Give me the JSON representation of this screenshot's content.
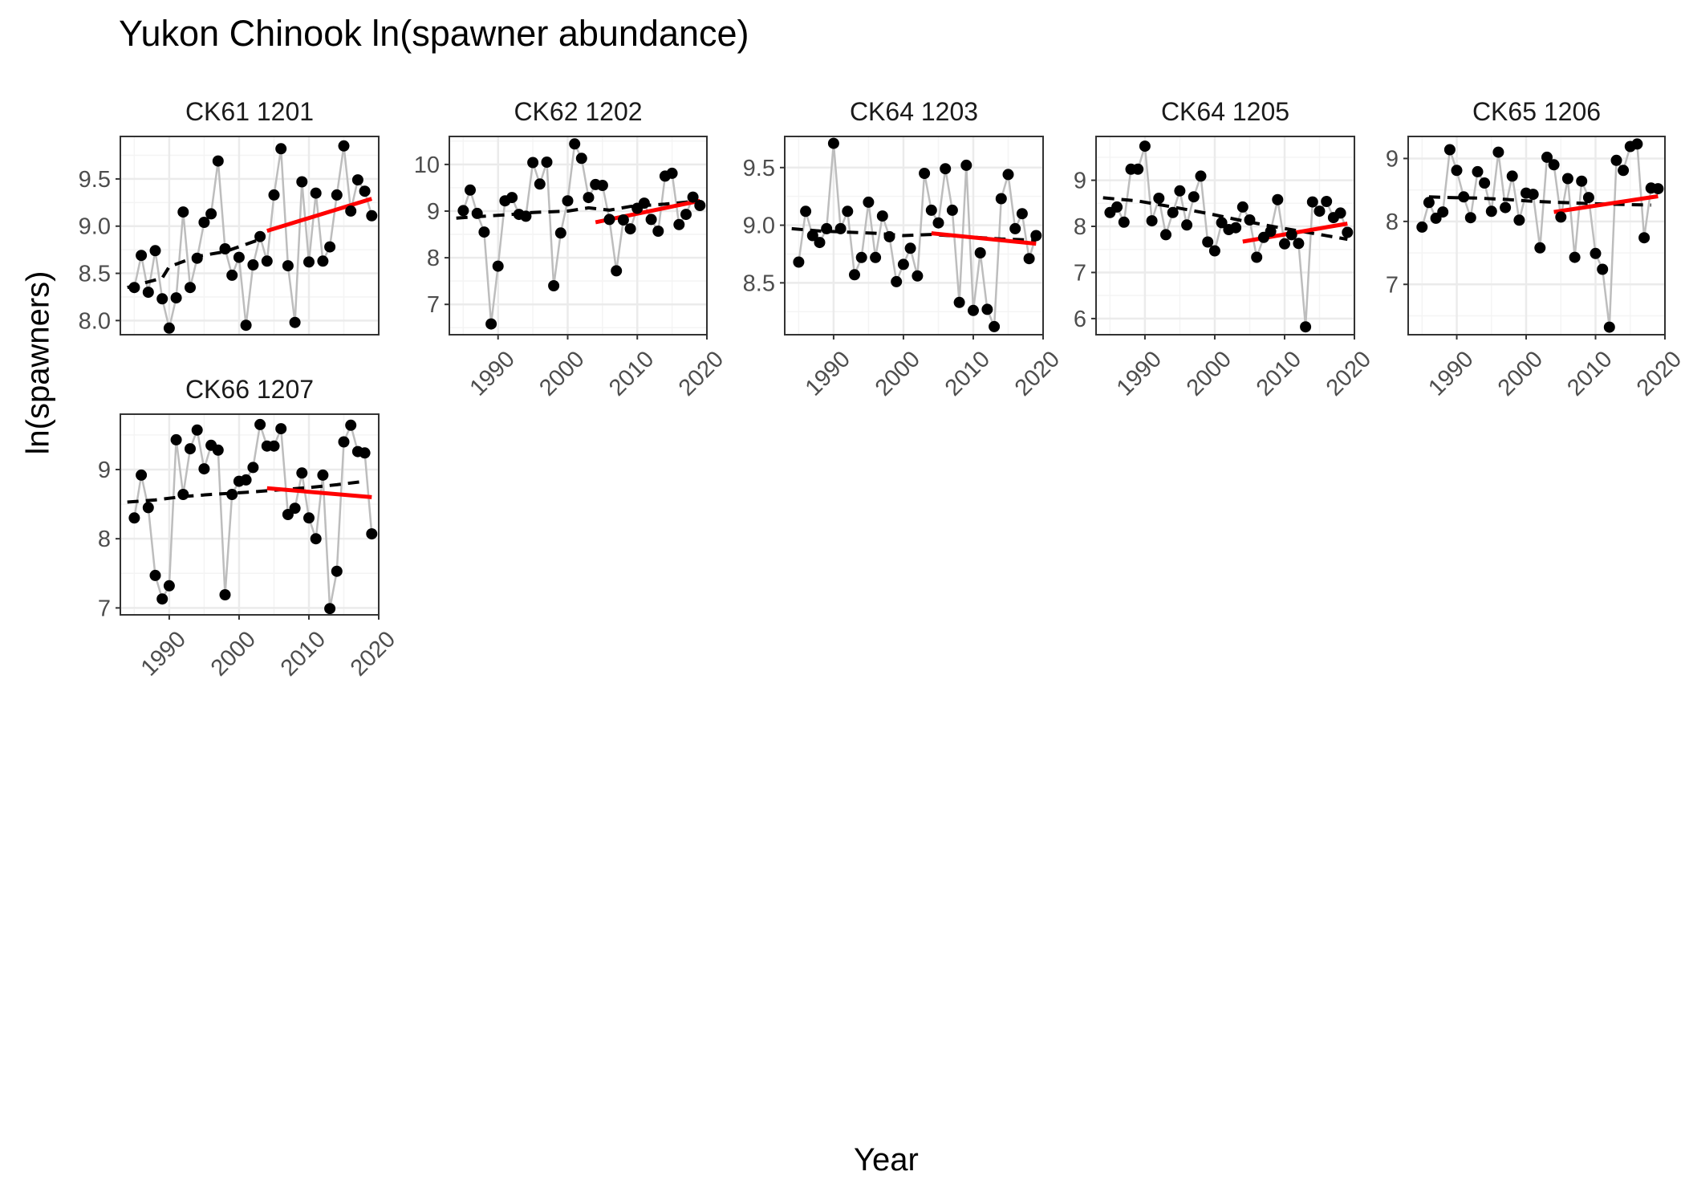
{
  "title": "Yukon Chinook  ln(spawner abundance)",
  "xlabel": "Year",
  "ylabel": "ln(spawners)",
  "colors": {
    "points": "#000000",
    "connector": "#bdbdbd",
    "trend_dashed": "#000000",
    "trend_recent": "#ff0000",
    "panel_border": "#333333",
    "grid_major": "#ebebeb",
    "grid_minor": "#f4f4f4",
    "strip_text": "#1a1a1a",
    "tick_text": "#4d4d4d"
  },
  "chart_data": [
    {
      "type": "scatter",
      "panel": "CK61 1201",
      "xlim": [
        1983,
        2020
      ],
      "ylim": [
        7.85,
        9.95
      ],
      "xticks": [
        1990,
        2000,
        2010,
        2020
      ],
      "yticks": [
        8.0,
        8.5,
        9.0,
        9.5
      ],
      "ytick_labels": [
        "8.0",
        "8.5",
        "9.0",
        "9.5"
      ],
      "show_x_axis": false,
      "years": [
        1985,
        1986,
        1987,
        1988,
        1989,
        1990,
        1991,
        1992,
        1993,
        1994,
        1995,
        1996,
        1997,
        1998,
        1999,
        2000,
        2001,
        2002,
        2003,
        2004,
        2005,
        2006,
        2007,
        2008,
        2009,
        2010,
        2011,
        2012,
        2013,
        2014,
        2015,
        2016,
        2017,
        2018,
        2019
      ],
      "values": [
        8.35,
        8.69,
        8.3,
        8.74,
        8.23,
        7.92,
        8.24,
        9.15,
        8.35,
        8.66,
        9.04,
        9.13,
        9.69,
        8.76,
        8.48,
        8.67,
        7.95,
        8.59,
        8.89,
        8.63,
        9.33,
        9.82,
        8.58,
        7.98,
        9.47,
        8.62,
        9.35,
        8.63,
        8.78,
        9.33,
        9.85,
        9.16,
        9.49,
        9.37,
        9.11
      ],
      "trend_dashed": [
        [
          1984,
          8.35
        ],
        [
          1989,
          8.45
        ],
        [
          1990,
          8.57
        ],
        [
          1994,
          8.68
        ],
        [
          1998,
          8.73
        ],
        [
          2003,
          8.86
        ]
      ],
      "trend_recent": [
        [
          2004,
          8.95
        ],
        [
          2019,
          9.29
        ]
      ]
    },
    {
      "type": "scatter",
      "panel": "CK62 1202",
      "xlim": [
        1983,
        2020
      ],
      "ylim": [
        6.35,
        10.6
      ],
      "xticks": [
        1990,
        2000,
        2010,
        2020
      ],
      "yticks": [
        7,
        8,
        9,
        10
      ],
      "ytick_labels": [
        "7",
        "8",
        "9",
        "10"
      ],
      "show_x_axis": true,
      "years": [
        1985,
        1986,
        1987,
        1988,
        1989,
        1990,
        1991,
        1992,
        1993,
        1994,
        1995,
        1996,
        1997,
        1998,
        1999,
        2000,
        2001,
        2002,
        2003,
        2004,
        2005,
        2006,
        2007,
        2008,
        2009,
        2010,
        2011,
        2012,
        2013,
        2014,
        2015,
        2016,
        2017,
        2018,
        2019
      ],
      "values": [
        9.01,
        9.45,
        8.95,
        8.55,
        6.58,
        7.82,
        9.22,
        9.29,
        8.93,
        8.89,
        10.04,
        9.58,
        10.05,
        7.4,
        8.53,
        9.22,
        10.44,
        10.13,
        9.29,
        9.57,
        9.55,
        8.82,
        7.72,
        8.81,
        8.62,
        9.06,
        9.17,
        8.82,
        8.57,
        9.75,
        9.81,
        8.71,
        8.93,
        9.3,
        9.12
      ],
      "trend_dashed": [
        [
          1984,
          8.85
        ],
        [
          1987,
          8.88
        ],
        [
          1992,
          8.93
        ],
        [
          1995,
          8.97
        ],
        [
          2000,
          9.0
        ],
        [
          2003,
          9.07
        ],
        [
          2006,
          9.02
        ],
        [
          2009,
          9.1
        ],
        [
          2014,
          9.15
        ],
        [
          2019,
          9.22
        ]
      ],
      "trend_recent": [
        [
          2004,
          8.76
        ],
        [
          2019,
          9.22
        ]
      ]
    },
    {
      "type": "scatter",
      "panel": "CK64 1203",
      "xlim": [
        1983,
        2020
      ],
      "ylim": [
        8.05,
        9.77
      ],
      "xticks": [
        1990,
        2000,
        2010,
        2020
      ],
      "yticks": [
        8.5,
        9.0,
        9.5
      ],
      "ytick_labels": [
        "8.5",
        "9.0",
        "9.5"
      ],
      "show_x_axis": true,
      "years": [
        1985,
        1986,
        1987,
        1988,
        1989,
        1990,
        1991,
        1992,
        1993,
        1994,
        1995,
        1996,
        1997,
        1998,
        1999,
        2000,
        2001,
        2002,
        2003,
        2004,
        2005,
        2006,
        2007,
        2008,
        2009,
        2010,
        2011,
        2012,
        2013,
        2014,
        2015,
        2016,
        2017,
        2018,
        2019
      ],
      "values": [
        8.68,
        9.12,
        8.91,
        8.85,
        8.97,
        9.71,
        8.97,
        9.12,
        8.57,
        8.72,
        9.2,
        8.72,
        9.08,
        8.9,
        8.51,
        8.66,
        8.8,
        8.56,
        9.45,
        9.13,
        9.02,
        9.49,
        9.13,
        8.33,
        9.52,
        8.26,
        8.76,
        8.27,
        8.12,
        9.23,
        9.44,
        8.97,
        9.1,
        8.71,
        8.91
      ],
      "trend_dashed": [
        [
          1984,
          8.97
        ],
        [
          1988,
          8.95
        ],
        [
          1992,
          8.94
        ],
        [
          1996,
          8.93
        ],
        [
          2000,
          8.91
        ],
        [
          2004,
          8.92
        ],
        [
          2009,
          8.9
        ],
        [
          2014,
          8.88
        ],
        [
          2019,
          8.87
        ]
      ],
      "trend_recent": [
        [
          2004,
          8.93
        ],
        [
          2019,
          8.84
        ]
      ]
    },
    {
      "type": "scatter",
      "panel": "CK64 1205",
      "xlim": [
        1983,
        2020
      ],
      "ylim": [
        5.65,
        9.95
      ],
      "xticks": [
        1990,
        2000,
        2010,
        2020
      ],
      "yticks": [
        6,
        7,
        8,
        9
      ],
      "ytick_labels": [
        "6",
        "7",
        "8",
        "9"
      ],
      "show_x_axis": true,
      "years": [
        1985,
        1986,
        1987,
        1988,
        1989,
        1990,
        1991,
        1992,
        1993,
        1994,
        1995,
        1996,
        1997,
        1998,
        1999,
        2000,
        2001,
        2002,
        2003,
        2004,
        2005,
        2006,
        2007,
        2008,
        2009,
        2010,
        2011,
        2012,
        2013,
        2014,
        2015,
        2016,
        2017,
        2018,
        2019
      ],
      "values": [
        8.3,
        8.42,
        8.09,
        9.24,
        9.24,
        9.74,
        8.12,
        8.61,
        7.82,
        8.3,
        8.77,
        8.03,
        8.64,
        9.09,
        7.66,
        7.47,
        8.08,
        7.93,
        7.97,
        8.42,
        8.14,
        7.33,
        7.76,
        7.89,
        8.58,
        7.62,
        7.82,
        7.63,
        5.82,
        8.53,
        8.33,
        8.54,
        8.19,
        8.29,
        7.87
      ],
      "trend_dashed": [
        [
          1984,
          8.62
        ],
        [
          1989,
          8.55
        ],
        [
          1994,
          8.42
        ],
        [
          1999,
          8.28
        ],
        [
          2004,
          8.12
        ],
        [
          2009,
          7.98
        ],
        [
          2014,
          7.85
        ],
        [
          2019,
          7.72
        ]
      ],
      "trend_recent": [
        [
          2004,
          7.67
        ],
        [
          2019,
          8.06
        ]
      ]
    },
    {
      "type": "scatter",
      "panel": "CK65 1206",
      "xlim": [
        1983,
        2020
      ],
      "ylim": [
        6.2,
        9.35
      ],
      "xticks": [
        1990,
        2000,
        2010,
        2020
      ],
      "yticks": [
        7,
        8,
        9
      ],
      "ytick_labels": [
        "7",
        "8",
        "9"
      ],
      "show_x_axis": true,
      "years": [
        1985,
        1986,
        1987,
        1988,
        1989,
        1990,
        1991,
        1992,
        1993,
        1994,
        1995,
        1996,
        1997,
        1998,
        1999,
        2000,
        2001,
        2002,
        2003,
        2004,
        2005,
        2006,
        2007,
        2008,
        2009,
        2010,
        2011,
        2012,
        2013,
        2014,
        2015,
        2016,
        2017,
        2018,
        2019
      ],
      "values": [
        7.91,
        8.3,
        8.05,
        8.15,
        9.14,
        8.81,
        8.39,
        8.06,
        8.79,
        8.61,
        8.16,
        9.1,
        8.22,
        8.72,
        8.02,
        8.45,
        8.43,
        7.58,
        9.02,
        8.9,
        8.07,
        8.68,
        7.43,
        8.64,
        8.38,
        7.49,
        7.24,
        6.32,
        8.97,
        8.81,
        9.19,
        9.23,
        7.74,
        8.53,
        8.52
      ],
      "trend_dashed": [
        [
          1986,
          8.39
        ],
        [
          1989,
          8.38
        ],
        [
          1993,
          8.37
        ],
        [
          1997,
          8.35
        ],
        [
          2001,
          8.32
        ],
        [
          2005,
          8.3
        ],
        [
          2010,
          8.28
        ],
        [
          2014,
          8.27
        ],
        [
          2018,
          8.26
        ]
      ],
      "trend_recent": [
        [
          2004,
          8.15
        ],
        [
          2019,
          8.4
        ]
      ]
    },
    {
      "type": "scatter",
      "panel": "CK66 1207",
      "xlim": [
        1983,
        2020
      ],
      "ylim": [
        6.9,
        9.8
      ],
      "xticks": [
        1990,
        2000,
        2010,
        2020
      ],
      "yticks": [
        7,
        8,
        9
      ],
      "ytick_labels": [
        "7",
        "8",
        "9"
      ],
      "show_x_axis": true,
      "years": [
        1985,
        1986,
        1987,
        1988,
        1989,
        1990,
        1991,
        1992,
        1993,
        1994,
        1995,
        1996,
        1997,
        1998,
        1999,
        2000,
        2001,
        2002,
        2003,
        2004,
        2005,
        2006,
        2007,
        2008,
        2009,
        2010,
        2011,
        2012,
        2013,
        2014,
        2015,
        2016,
        2017,
        2018,
        2019
      ],
      "values": [
        8.3,
        8.92,
        8.45,
        7.47,
        7.13,
        7.32,
        9.43,
        8.64,
        9.3,
        9.57,
        9.01,
        9.35,
        9.28,
        7.19,
        8.64,
        8.83,
        8.85,
        9.03,
        9.65,
        9.34,
        9.34,
        9.59,
        8.35,
        8.44,
        8.95,
        8.3,
        8.0,
        8.92,
        6.99,
        7.53,
        9.4,
        9.64,
        9.26,
        9.24,
        8.07
      ],
      "trend_dashed": [
        [
          1984,
          8.53
        ],
        [
          1988,
          8.56
        ],
        [
          1992,
          8.61
        ],
        [
          1996,
          8.64
        ],
        [
          2001,
          8.67
        ],
        [
          2005,
          8.7
        ],
        [
          2010,
          8.74
        ],
        [
          2014,
          8.78
        ],
        [
          2018,
          8.83
        ]
      ],
      "trend_recent": [
        [
          2004,
          8.73
        ],
        [
          2019,
          8.6
        ]
      ]
    }
  ]
}
